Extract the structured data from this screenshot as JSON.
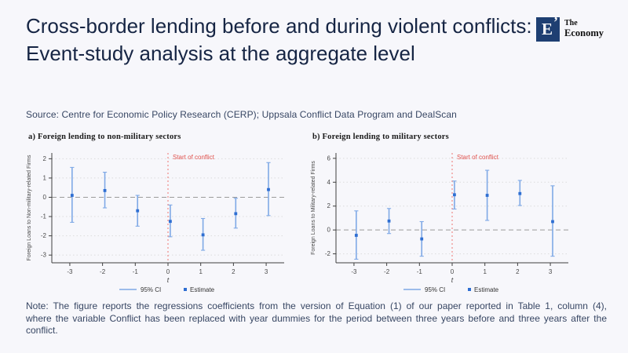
{
  "header": {
    "title": "Cross-border lending before and during violent conflicts: Event-study analysis at the aggregate level",
    "source": "Source: Centre for Economic Policy Research (CERP); Uppsala Conflict Data Program and DealScan"
  },
  "logo": {
    "letter": "E",
    "apostrophe": "’",
    "brand_top": "The",
    "brand_bottom": "Economy"
  },
  "note": "Note: The figure reports the regressions coefficients from the version of Equation (1) of our paper reported in Table 1, column (4), where the variable Conflict has been replaced with year dummies for the period between three years before and three years after the conflict.",
  "colors": {
    "background": "#f7f7fb",
    "title_text": "#162544",
    "body_text": "#374663",
    "logo_square": "#1e3f72",
    "ci": "#7fa9e6",
    "estimate": "#2e6ed2",
    "conflict": "#e0534e",
    "conflict_line": "#ee827e",
    "zero_line": "#9b9b9b",
    "grid": "#dcdcdc",
    "axis": "#3f3f3f",
    "tick_text": "#4a4a4a",
    "legend_text": "#333333"
  },
  "chart_data": [
    {
      "type": "scatter",
      "panel_label": "a) Foreign lending to non-military sectors",
      "ylabel": "Foreign Loans to Non-military-related Firms",
      "xlabel": "t",
      "annotation": "Start of conflict",
      "legend": [
        "95% CI",
        "Estimate"
      ],
      "x": [
        -3,
        -2,
        -1,
        0,
        1,
        2,
        3
      ],
      "estimate": [
        0.1,
        0.35,
        -0.7,
        -1.25,
        -1.95,
        -0.85,
        0.4
      ],
      "ci_low": [
        -1.3,
        -0.55,
        -1.5,
        -2.05,
        -2.75,
        -1.6,
        -0.95
      ],
      "ci_high": [
        1.55,
        1.3,
        0.1,
        -0.4,
        -1.1,
        -0.05,
        1.8
      ],
      "yticks": [
        2,
        1,
        0,
        -1,
        -2,
        -3
      ],
      "xticks": [
        -3,
        -2,
        -1,
        0,
        1,
        2,
        3
      ],
      "ylim": [
        -3.4,
        2.3
      ],
      "xlim": [
        -3.55,
        3.55
      ],
      "grid": true,
      "legend_position": "bottom"
    },
    {
      "type": "scatter",
      "panel_label": "b) Foreign lending to military sectors",
      "ylabel": "Foreign Loans to Military-related Firms",
      "xlabel": "t",
      "annotation": "Start of conflict",
      "legend": [
        "95% CI",
        "Estimate"
      ],
      "x": [
        -3,
        -2,
        -1,
        0,
        1,
        2,
        3
      ],
      "estimate": [
        -0.45,
        0.75,
        -0.75,
        2.95,
        2.9,
        3.05,
        0.7
      ],
      "ci_low": [
        -2.45,
        -0.3,
        -2.2,
        1.75,
        0.8,
        2.05,
        -2.2
      ],
      "ci_high": [
        1.6,
        1.8,
        0.7,
        4.1,
        5.0,
        4.15,
        3.7
      ],
      "yticks": [
        6,
        4,
        2,
        0,
        -2
      ],
      "xticks": [
        -3,
        -2,
        -1,
        0,
        1,
        2,
        3
      ],
      "ylim": [
        -2.75,
        6.45
      ],
      "xlim": [
        -3.55,
        3.55
      ],
      "grid": true,
      "legend_position": "bottom"
    }
  ]
}
